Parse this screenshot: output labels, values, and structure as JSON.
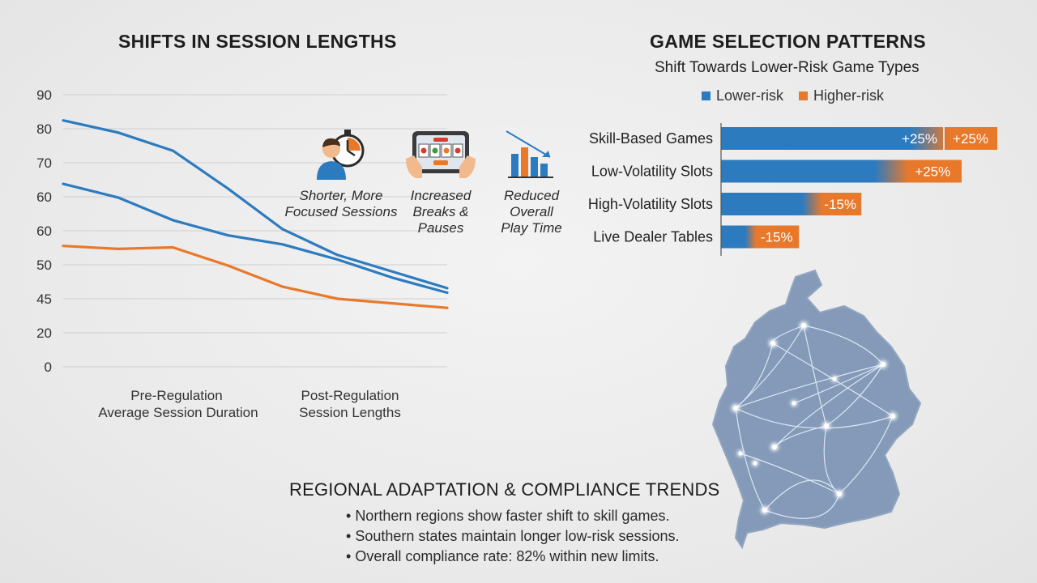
{
  "left_chart": {
    "title": "SHIFTS IN SESSION LENGTHS",
    "x_labels": [
      {
        "line1": "Pre-Regulation",
        "line2": "Average Session Duration"
      },
      {
        "line1": "Post-Regulation",
        "line2": "Session Lengths"
      }
    ]
  },
  "features": [
    {
      "icon": "person-stopwatch-icon",
      "line1": "Shorter, More",
      "line2": "Focused Sessions",
      "line3": ""
    },
    {
      "icon": "tablet-slot-machine-icon",
      "line1": "Increased",
      "line2": "Breaks &",
      "line3": "Pauses"
    },
    {
      "icon": "declining-bar-chart-icon",
      "line1": "Reduced",
      "line2": "Overall",
      "line3": "Play Time"
    }
  ],
  "right_chart": {
    "title": "GAME SELECTION PATTERNS",
    "subtitle": "Shift Towards Lower-Risk Game Types",
    "legend": [
      {
        "label": "Lower-risk",
        "color": "#2d7bbf"
      },
      {
        "label": "Higher-risk",
        "color": "#e8792b"
      }
    ]
  },
  "regional": {
    "title": "REGIONAL ADAPTATION & COMPLIANCE TRENDS",
    "bullets": [
      "Northern regions show faster shift to skill games.",
      "Southern states maintain longer low-risk sessions.",
      "Overall compliance rate: 82% within new limits."
    ]
  },
  "map": {
    "icon": "germany-network-map-icon"
  },
  "chart_data": [
    {
      "type": "line",
      "title": "SHIFTS IN SESSION LENGTHS",
      "y_tick_labels": [
        "90",
        "80",
        "70",
        "60",
        "60",
        "50",
        "45",
        "20",
        "0"
      ],
      "x_labels": [
        "Pre-Regulation Average Session Duration",
        "Post-Regulation Session Lengths"
      ],
      "x": [
        0,
        1,
        2,
        3,
        4,
        5,
        6,
        7
      ],
      "series": [
        {
          "color": "#2d7bbf",
          "values": [
            81.5,
            77.5,
            71.5,
            59.0,
            45.5,
            37.0,
            31.5,
            26.0
          ]
        },
        {
          "color": "#2d7bbf",
          "values": [
            60.5,
            56.0,
            48.5,
            43.5,
            40.5,
            35.5,
            29.5,
            24.5
          ]
        },
        {
          "color": "#e8792b",
          "values": [
            40.0,
            39.0,
            39.5,
            33.5,
            26.5,
            22.5,
            21.0,
            19.5
          ]
        }
      ],
      "ylim": [
        0,
        90
      ],
      "grid": true
    },
    {
      "type": "bar",
      "orientation": "horizontal",
      "stacked": true,
      "title": "GAME SELECTION PATTERNS",
      "subtitle": "Shift Towards Lower-Risk Game Types",
      "categories": [
        "Skill-Based Games",
        "Low-Volatility Slots",
        "High-Volatility Slots",
        "Live Dealer Tables"
      ],
      "series": [
        {
          "name": "Lower-risk",
          "color": "#2d7bbf",
          "labels": [
            "+25%",
            "",
            "",
            ""
          ],
          "values": [
            100,
            82,
            44,
            15
          ]
        },
        {
          "name": "Higher-risk",
          "color": "#e8792b",
          "labels": [
            "+25%",
            "+25%",
            "-15%",
            "-15%"
          ],
          "values": [
            24,
            26,
            19,
            20
          ]
        }
      ],
      "legend": "top"
    }
  ]
}
